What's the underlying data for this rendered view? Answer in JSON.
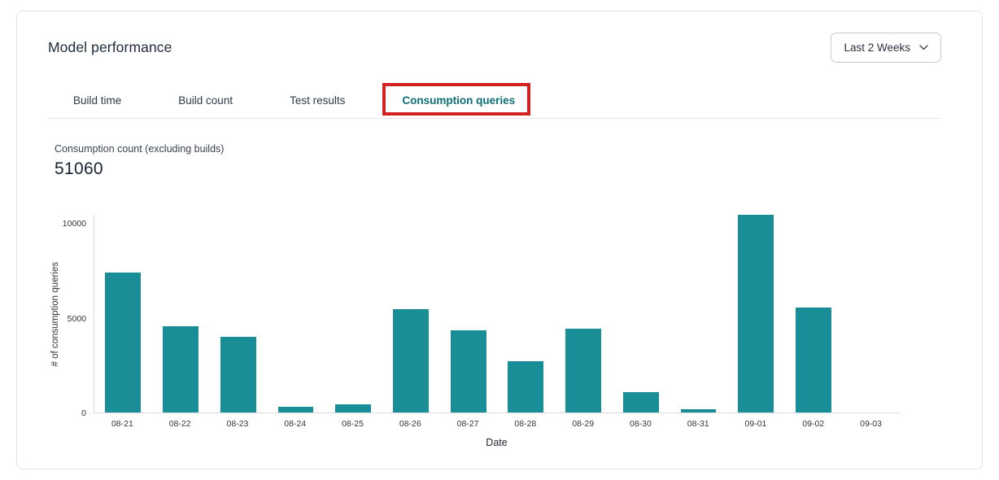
{
  "header": {
    "title": "Model performance"
  },
  "filter": {
    "value": "Last 2 Weeks"
  },
  "tabs": [
    {
      "label": "Build time",
      "active": false,
      "highlighted": false
    },
    {
      "label": "Build count",
      "active": false,
      "highlighted": false
    },
    {
      "label": "Test results",
      "active": false,
      "highlighted": false
    },
    {
      "label": "Consumption queries",
      "active": true,
      "highlighted": true
    }
  ],
  "metric": {
    "label": "Consumption count (excluding builds)",
    "value": "51060"
  },
  "chart_data": {
    "type": "bar",
    "title": "Consumption count (excluding builds)",
    "categories": [
      "08-21",
      "08-22",
      "08-23",
      "08-24",
      "08-25",
      "08-26",
      "08-27",
      "08-28",
      "08-29",
      "08-30",
      "08-31",
      "09-01",
      "09-02",
      "09-03"
    ],
    "values": [
      7420,
      4560,
      4010,
      320,
      420,
      5480,
      4360,
      2700,
      4450,
      1100,
      190,
      10480,
      5570,
      0
    ],
    "xlabel": "Date",
    "ylabel": "# of consumption queries",
    "ylim": [
      0,
      10480
    ],
    "yticks": [
      0,
      5000,
      10000
    ],
    "grid": false,
    "legend_position": "none",
    "bar_color": "#1a8e96"
  },
  "colors": {
    "bar-color": "#1a8e96",
    "tab-active-color": "#0e6e78",
    "annotation-color": "#d32222"
  }
}
